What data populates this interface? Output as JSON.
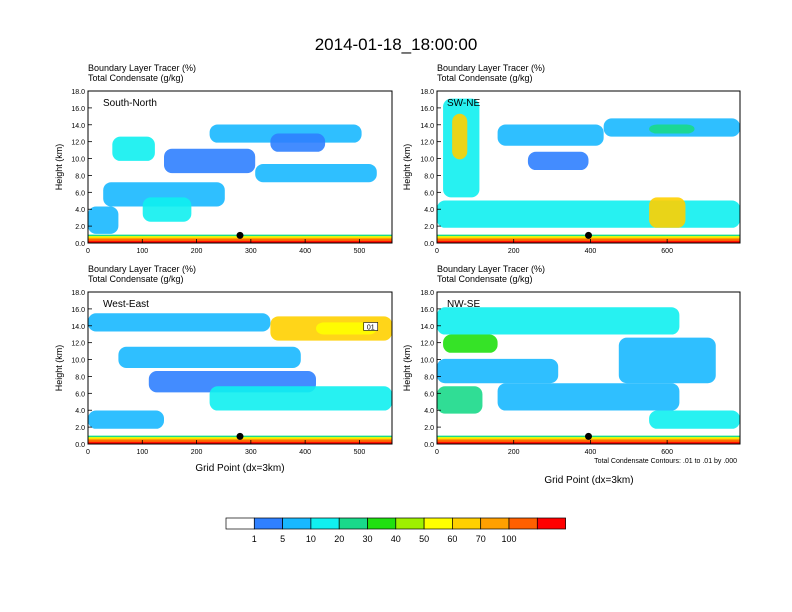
{
  "page": {
    "title": "2014-01-18_18:00:00"
  },
  "colors": {
    "levels": [
      "#ffffff",
      "#2f80ff",
      "#18b8ff",
      "#10f0f0",
      "#19d98a",
      "#20e010",
      "#9ff000",
      "#ffff00",
      "#ffd000",
      "#ffa000",
      "#ff6000",
      "#ff0000"
    ]
  },
  "chart_data": [
    {
      "type": "heatmap",
      "panel": "South-North",
      "header_line1": "Boundary Layer Tracer   (%)",
      "header_line2": "Total Condensate   (g/kg)",
      "ylabel": "Height (km)",
      "xlabel": "",
      "xlim": [
        0,
        560
      ],
      "ylim": [
        0,
        18
      ],
      "xticks": [
        "0",
        "100",
        "200",
        "300",
        "400",
        "500"
      ],
      "yticks": [
        "0.0",
        "2.0",
        "4.0",
        "6.0",
        "8.0",
        "10.0",
        "12.0",
        "14.0",
        "16.0",
        "18.0"
      ],
      "marker_x": 280,
      "contour_label": "",
      "footnote": ""
    },
    {
      "type": "heatmap",
      "panel": "SW-NE",
      "header_line1": "Boundary Layer Tracer   (%)",
      "header_line2": "Total Condensate   (g/kg)",
      "ylabel": "Height (km)",
      "xlabel": "",
      "xlim": [
        0,
        790
      ],
      "ylim": [
        0,
        18
      ],
      "xticks": [
        "0",
        "200",
        "400",
        "600"
      ],
      "yticks": [
        "0.0",
        "2.0",
        "4.0",
        "6.0",
        "8.0",
        "10.0",
        "12.0",
        "14.0",
        "16.0",
        "18.0"
      ],
      "marker_x": 395,
      "contour_label": "",
      "footnote": ""
    },
    {
      "type": "heatmap",
      "panel": "West-East",
      "header_line1": "Boundary Layer Tracer   (%)",
      "header_line2": "Total Condensate   (g/kg)",
      "ylabel": "Height (km)",
      "xlabel": "Grid Point (dx=3km)",
      "xlim": [
        0,
        560
      ],
      "ylim": [
        0,
        18
      ],
      "xticks": [
        "0",
        "100",
        "200",
        "300",
        "400",
        "500"
      ],
      "yticks": [
        "0.0",
        "2.0",
        "4.0",
        "6.0",
        "8.0",
        "10.0",
        "12.0",
        "14.0",
        "16.0",
        "18.0"
      ],
      "marker_x": 280,
      "contour_label": "01",
      "footnote": ""
    },
    {
      "type": "heatmap",
      "panel": "NW-SE",
      "header_line1": "Boundary Layer Tracer   (%)",
      "header_line2": "Total Condensate   (g/kg)",
      "ylabel": "Height (km)",
      "xlabel": "Grid Point (dx=3km)",
      "xlim": [
        0,
        790
      ],
      "ylim": [
        0,
        18
      ],
      "xticks": [
        "0",
        "200",
        "400",
        "600"
      ],
      "yticks": [
        "0.0",
        "2.0",
        "4.0",
        "6.0",
        "8.0",
        "10.0",
        "12.0",
        "14.0",
        "16.0",
        "18.0"
      ],
      "marker_x": 395,
      "contour_label": "",
      "footnote": "Total Condensate Contours: .01 to .01 by .000"
    }
  ],
  "colorbar": {
    "labels": [
      "1",
      "5",
      "10",
      "20",
      "30",
      "40",
      "50",
      "60",
      "70",
      "100"
    ]
  }
}
